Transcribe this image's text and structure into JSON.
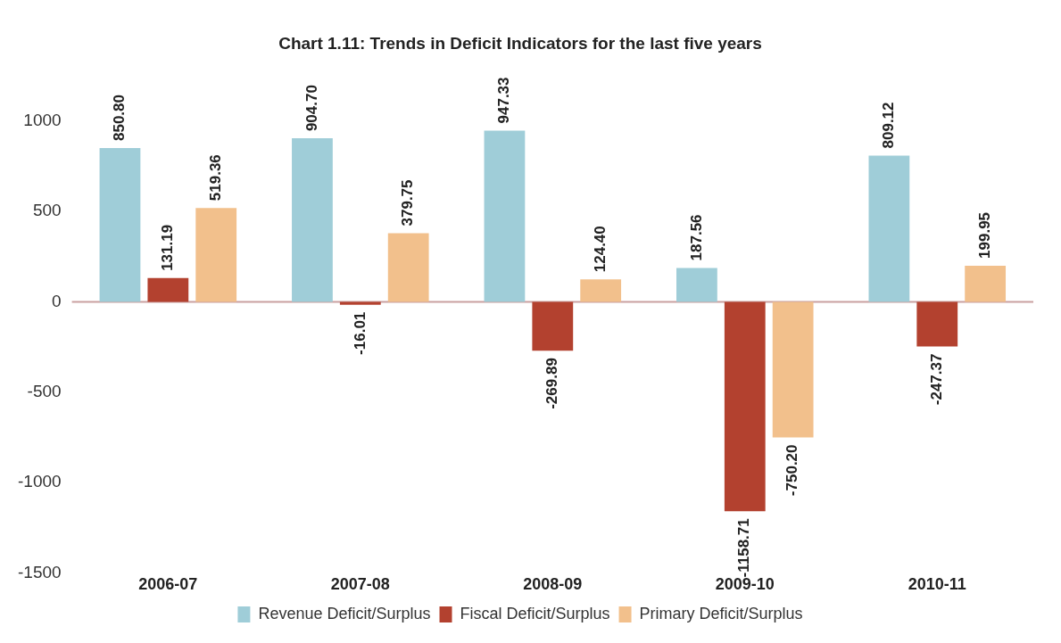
{
  "chart_data": {
    "type": "bar",
    "title": "Chart 1.11: Trends in Deficit Indicators for the last five years",
    "categories": [
      "2006-07",
      "2007-08",
      "2008-09",
      "2009-10",
      "2010-11"
    ],
    "series": [
      {
        "name": "Revenue Deficit/Surplus",
        "color": "#9fcdd8",
        "values": [
          850.8,
          904.7,
          947.33,
          187.56,
          809.12
        ],
        "value_labels": [
          "850.80",
          "904.70",
          "947.33",
          "187.56",
          "809.12"
        ]
      },
      {
        "name": "Fiscal Deficit/Surplus",
        "color": "#b3412f",
        "values": [
          131.19,
          -16.01,
          -269.89,
          -1158.71,
          -247.37
        ],
        "value_labels": [
          "131.19",
          "-16.01",
          "-269.89",
          "-1158.71",
          "-247.37"
        ]
      },
      {
        "name": "Primary Deficit/Surplus",
        "color": "#f2c08c",
        "values": [
          519.36,
          379.75,
          124.4,
          -750.2,
          199.95
        ],
        "value_labels": [
          "519.36",
          "379.75",
          "124.40",
          "-750.20",
          "199.95"
        ]
      }
    ],
    "ylim": [
      -1500,
      1000
    ],
    "yticks": [
      -1500,
      -1000,
      -500,
      0,
      500,
      1000
    ],
    "ref_lines": [
      {
        "axis": "y",
        "value": 0,
        "color": "#c9a0a0"
      }
    ],
    "grid": false,
    "legend": "bottom"
  }
}
